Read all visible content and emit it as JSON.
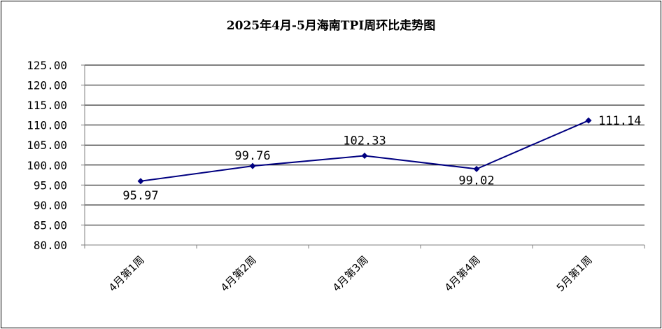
{
  "chart_data": {
    "type": "line",
    "title": "2025年4月-5月海南TPI周环比走势图",
    "categories": [
      "4月第1周",
      "4月第2周",
      "4月第3周",
      "4月第4周",
      "5月第1周"
    ],
    "series": [
      {
        "values": [
          95.97,
          99.76,
          102.33,
          99.02,
          111.14
        ]
      }
    ],
    "data_labels": [
      "95.97",
      "99.76",
      "102.33",
      "99.02",
      "111.14"
    ],
    "ylim": [
      80,
      125
    ],
    "yticks": [
      80,
      85,
      90,
      95,
      100,
      105,
      110,
      115,
      120,
      125
    ],
    "ytick_labels": [
      "80.00",
      "85.00",
      "90.00",
      "95.00",
      "100.00",
      "105.00",
      "110.00",
      "115.00",
      "120.00",
      "125.00"
    ],
    "grid": true,
    "legend": "none",
    "line_color": "#000080"
  }
}
